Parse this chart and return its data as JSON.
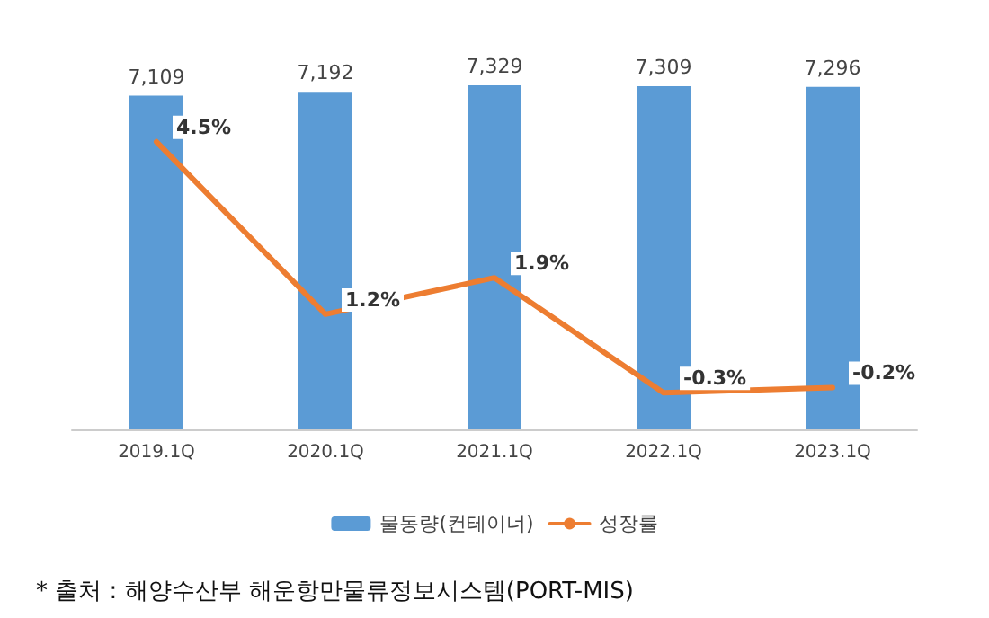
{
  "chart_data": {
    "type": "bar",
    "categories": [
      "2019.1Q",
      "2020.1Q",
      "2021.1Q",
      "2022.1Q",
      "2023.1Q"
    ],
    "series": [
      {
        "name": "물동량(컨테이너)",
        "color": "#5b9bd5",
        "values": [
          7109,
          7192,
          7329,
          7309,
          7296
        ],
        "value_labels": [
          "7,109",
          "7,192",
          "7,329",
          "7,309",
          "7,296"
        ]
      },
      {
        "name": "성장률",
        "type": "line",
        "axis": "y2",
        "color": "#ed7d31",
        "values": [
          4.5,
          1.2,
          1.9,
          -0.3,
          -0.2
        ],
        "value_labels": [
          "4.5%",
          "1.2%",
          "1.9%",
          "-0.3%",
          "-0.2%"
        ]
      }
    ],
    "tick_labels": "x",
    "grid": false,
    "legend": "bottom",
    "marker": "none",
    "line_style": "solid",
    "annotations": [
      "* 출처 : 해양수산부 해운항만물류정보시스템(PORT-MIS)"
    ]
  }
}
